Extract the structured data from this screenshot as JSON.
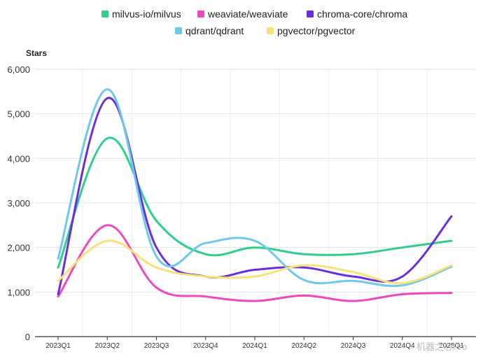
{
  "chart_data": {
    "type": "line",
    "title": "",
    "xlabel": "",
    "ylabel": "Stars",
    "categories": [
      "2023Q1",
      "2023Q2",
      "2023Q3",
      "2023Q4",
      "2024Q1",
      "2024Q2",
      "2024Q3",
      "2024Q4",
      "2025Q1"
    ],
    "ylim": [
      0,
      6000
    ],
    "yticks": [
      0,
      1000,
      2000,
      3000,
      4000,
      5000,
      6000
    ],
    "ytick_labels": [
      "0",
      "1,000",
      "2,000",
      "3,000",
      "4,000",
      "5,000",
      "6,000"
    ],
    "grid": true,
    "legend_position": "top",
    "series": [
      {
        "name": "milvus-io/milvus",
        "color": "#2ecf8a",
        "values": [
          1550,
          4450,
          2600,
          1850,
          2000,
          1850,
          1850,
          2000,
          2150
        ]
      },
      {
        "name": "weaviate/weaviate",
        "color": "#f048c0",
        "values": [
          900,
          2500,
          1100,
          900,
          800,
          920,
          800,
          950,
          980
        ]
      },
      {
        "name": "chroma-core/chroma",
        "color": "#6a2ee0",
        "values": [
          950,
          5350,
          2000,
          1350,
          1500,
          1550,
          1350,
          1350,
          2700
        ]
      },
      {
        "name": "qdrant/qdrant",
        "color": "#6cc8ec",
        "values": [
          1750,
          5550,
          1800,
          2100,
          2150,
          1270,
          1250,
          1150,
          1570
        ]
      },
      {
        "name": "pgvector/pgvector",
        "color": "#f7e27a",
        "values": [
          1250,
          2150,
          1550,
          1350,
          1350,
          1600,
          1450,
          1200,
          1600
        ]
      }
    ],
    "watermark": "机器之心Pro"
  }
}
